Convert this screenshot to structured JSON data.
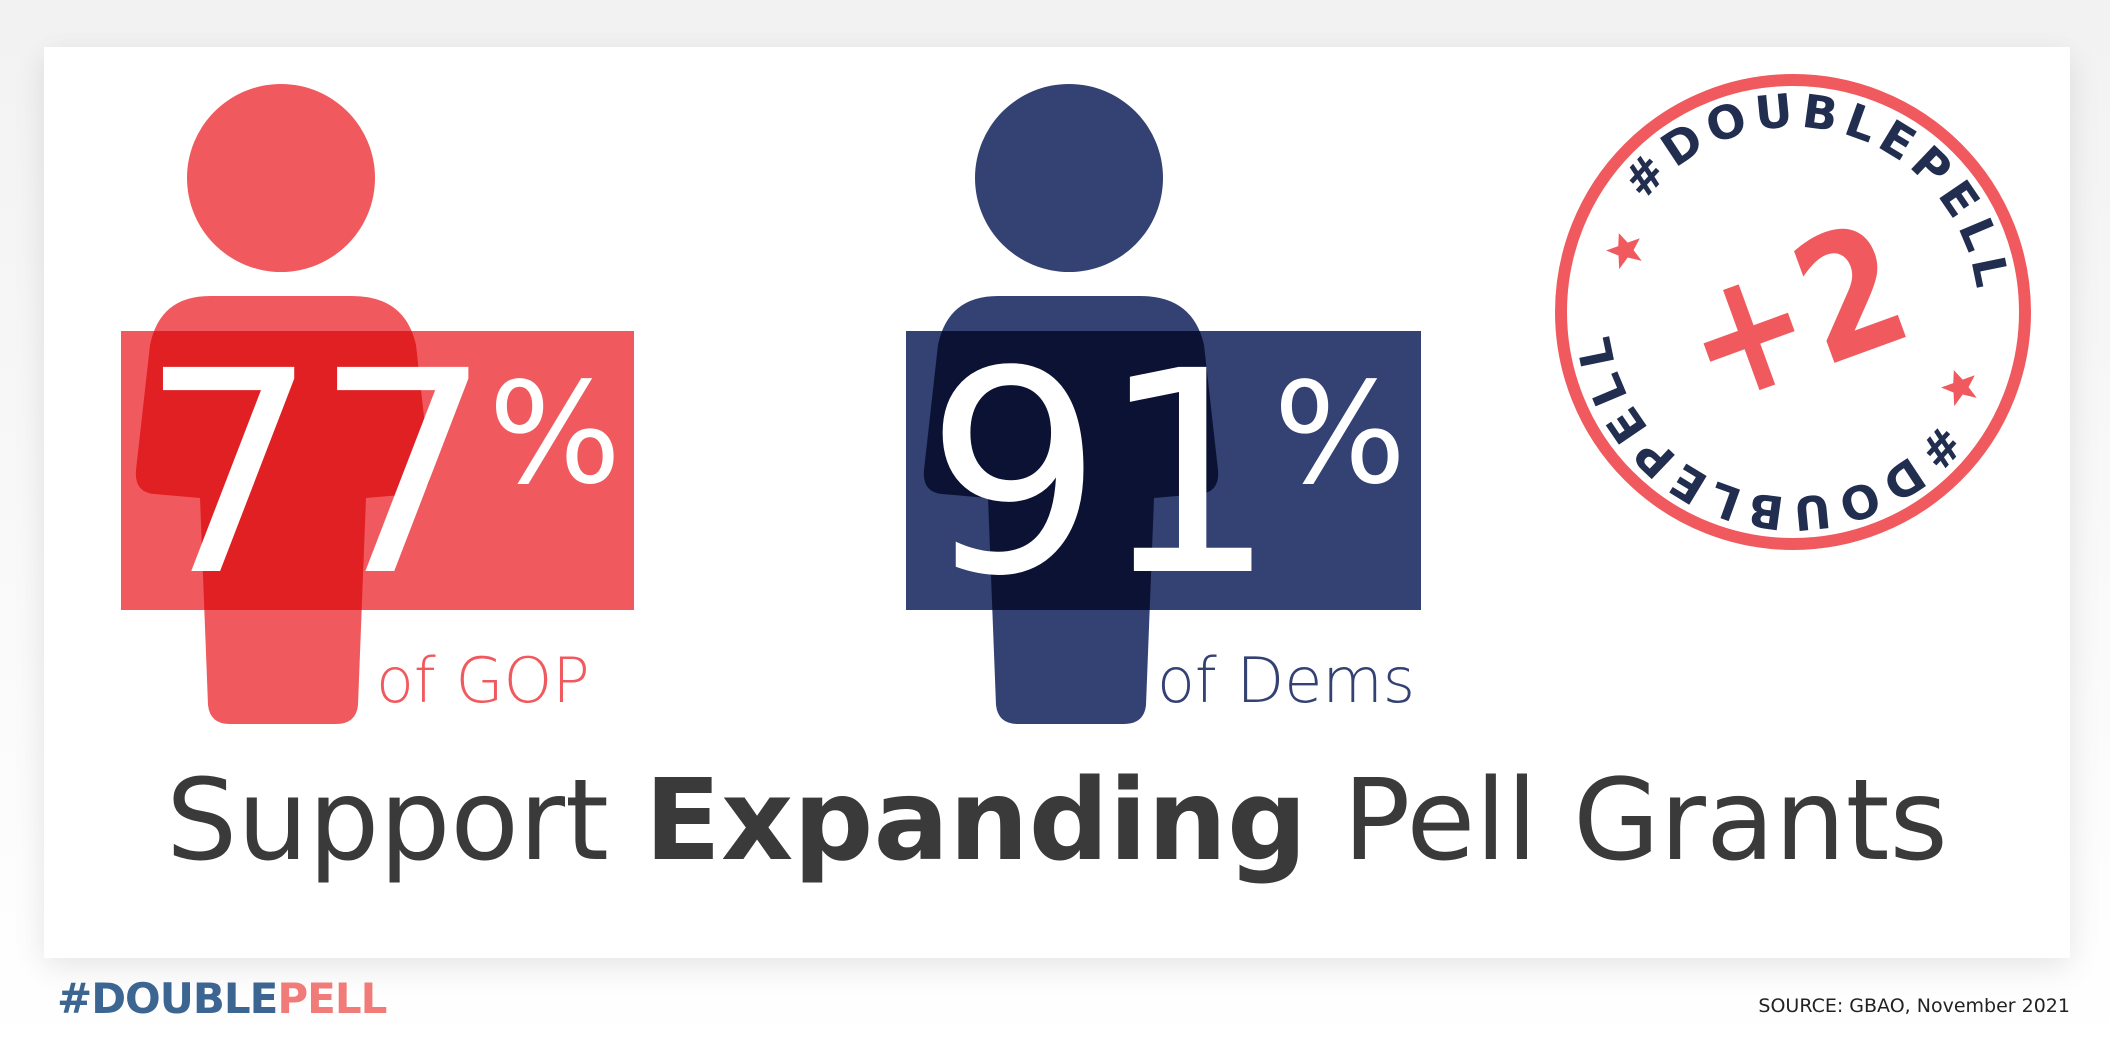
{
  "colors": {
    "gop": "#f05a5e",
    "dem": "#334273",
    "text": "#3a3a3a",
    "footer_blue": "#3d6591",
    "footer_red": "#f07b78"
  },
  "gop": {
    "value": "77",
    "sign": "%",
    "label": "of GOP",
    "icon": "person-icon"
  },
  "dem": {
    "value": "91",
    "sign": "%",
    "label": "of Dems",
    "icon": "person-icon"
  },
  "headline": {
    "pre": "Support ",
    "bold": "Expanding",
    "post": " Pell Grants"
  },
  "badge": {
    "ring_text": "#DOUBLEPELL",
    "center_text": "+2",
    "icon": "star-icon"
  },
  "footer": {
    "tag_part1": "#DOUBLE",
    "tag_part2": "PELL",
    "source": "SOURCE: GBAO, November 2021"
  }
}
